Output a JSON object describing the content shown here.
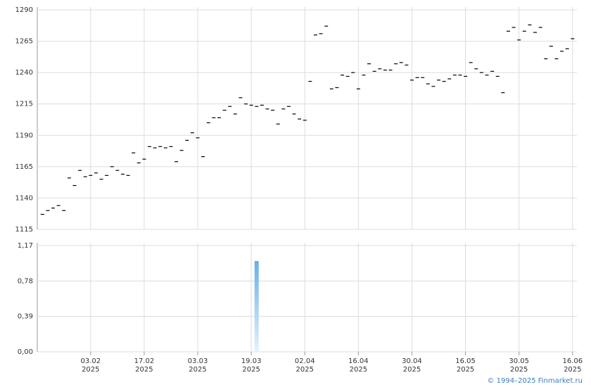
{
  "chart_data": {
    "type": "stock",
    "categories": [
      null,
      null,
      null,
      null,
      null,
      null,
      null,
      null,
      null,
      [
        "03.02",
        "2025"
      ],
      null,
      null,
      null,
      null,
      null,
      null,
      null,
      null,
      null,
      [
        "17.02",
        "2025"
      ],
      null,
      null,
      null,
      null,
      null,
      null,
      null,
      null,
      null,
      [
        "03.03",
        "2025"
      ],
      null,
      null,
      null,
      null,
      null,
      null,
      null,
      null,
      null,
      [
        "19.03",
        "2025"
      ],
      null,
      null,
      null,
      null,
      null,
      null,
      null,
      null,
      null,
      [
        "02.04",
        "2025"
      ],
      null,
      null,
      null,
      null,
      null,
      null,
      null,
      null,
      null,
      [
        "16.04",
        "2025"
      ],
      null,
      null,
      null,
      null,
      null,
      null,
      null,
      null,
      null,
      [
        "30.04",
        "2025"
      ],
      null,
      null,
      null,
      null,
      null,
      null,
      null,
      null,
      null,
      [
        "16.05",
        "2025"
      ],
      null,
      null,
      null,
      null,
      null,
      null,
      null,
      null,
      null,
      [
        "30.05",
        "2025"
      ],
      null,
      null,
      null,
      null,
      null,
      null,
      null,
      null,
      null,
      [
        "16.06",
        "2025"
      ]
    ],
    "price": {
      "color": "#000000",
      "ylim": [
        1115,
        1290
      ],
      "yticks": [
        1115,
        1140,
        1165,
        1190,
        1215,
        1240,
        1265,
        1290
      ],
      "values": [
        1127,
        1130,
        1132,
        1134,
        1130,
        1156,
        1150,
        1162,
        1157,
        1158,
        1160,
        1155,
        1158,
        1165,
        1162,
        1159,
        1158,
        1176,
        1168,
        1171,
        1181,
        1180,
        1181,
        1180,
        1181,
        1169,
        1178,
        1186,
        1192,
        1188,
        1173,
        1200,
        1204,
        1204,
        1210,
        1213,
        1207,
        1220,
        1215,
        1214,
        1213,
        1214,
        1211,
        1210,
        1199,
        1211,
        1213,
        1207,
        1203,
        1202,
        1233,
        1270,
        1271,
        1277,
        1227,
        1228,
        1238,
        1237,
        1240,
        1227,
        1238,
        1247,
        1241,
        1243,
        1242,
        1242,
        1247,
        1248,
        1246,
        1234,
        1236,
        1236,
        1231,
        1229,
        1234,
        1233,
        1235,
        1238,
        1238,
        1237,
        1248,
        1243,
        1240,
        1238,
        1241,
        1237,
        1224,
        1273,
        1276,
        1266,
        1273,
        1278,
        1272,
        1276,
        1251,
        1261,
        1251,
        1257,
        1259,
        1267
      ]
    },
    "volume": {
      "color": "#6ab0e6",
      "ylim": [
        0,
        1.17
      ],
      "yticks": [
        {
          "value": 0,
          "label": "0,00"
        },
        {
          "value": 0.39,
          "label": "0,39"
        },
        {
          "value": 0.78,
          "label": "0,78"
        },
        {
          "value": 1.17,
          "label": "1,17"
        }
      ],
      "values": [
        0,
        0,
        0,
        0,
        0,
        0,
        0,
        0,
        0,
        0,
        0,
        0,
        0,
        0,
        0,
        0,
        0,
        0,
        0,
        0,
        0,
        0,
        0,
        0,
        0,
        0,
        0,
        0,
        0,
        0,
        0,
        0,
        0,
        0,
        0,
        0,
        0,
        0,
        0,
        0,
        1.0,
        0,
        0,
        0,
        0,
        0,
        0,
        0,
        0,
        0,
        0,
        0,
        0,
        0,
        0,
        0,
        0,
        0,
        0,
        0,
        0,
        0,
        0,
        0,
        0,
        0,
        0,
        0,
        0,
        0,
        0,
        0,
        0,
        0,
        0,
        0,
        0,
        0,
        0,
        0,
        0,
        0,
        0,
        0,
        0,
        0,
        0,
        0,
        0,
        0,
        0,
        0,
        0,
        0,
        0,
        0,
        0,
        0,
        0,
        0
      ]
    },
    "copyright": "© 1994–2025 Finmarket.ru"
  }
}
